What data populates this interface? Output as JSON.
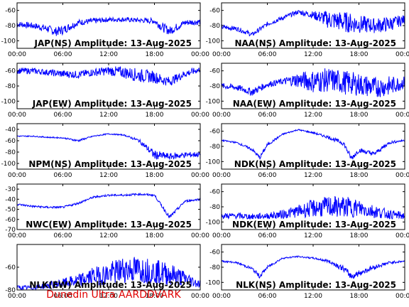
{
  "footer": "Dunedin Ultra AARDDVARK",
  "line_color": "#0000ff",
  "footer_color": "#e00000",
  "x_ticks": [
    "00:00",
    "06:00",
    "12:00",
    "18:00",
    "00:00"
  ],
  "chart_data": [
    {
      "type": "line",
      "title": "JAP(NS) Amplitude: 13-Aug-2025",
      "ylabel_ticks": [
        "-60",
        "-80",
        "-100"
      ],
      "ylim": [
        -110,
        -50
      ],
      "x": [
        0,
        2,
        4,
        5,
        6,
        8,
        10,
        12,
        14,
        16,
        18,
        19,
        20,
        22,
        24
      ],
      "series": [
        {
          "values": [
            -78,
            -80,
            -84,
            -88,
            -86,
            -76,
            -74,
            -72,
            -72,
            -73,
            -74,
            -82,
            -87,
            -76,
            -75
          ],
          "noise": [
            4,
            4,
            5,
            6,
            6,
            4,
            4,
            3,
            3,
            3,
            4,
            6,
            6,
            4,
            4
          ]
        }
      ]
    },
    {
      "type": "line",
      "title": "NAA(NS) Amplitude: 13-Aug-2025",
      "ylabel_ticks": [
        "-60",
        "-80",
        "-100"
      ],
      "ylim": [
        -110,
        -50
      ],
      "x": [
        0,
        2,
        4,
        6,
        8,
        10,
        12,
        14,
        16,
        18,
        20,
        22,
        24
      ],
      "series": [
        {
          "values": [
            -82,
            -84,
            -92,
            -78,
            -70,
            -62,
            -66,
            -72,
            -75,
            -78,
            -80,
            -78,
            -72
          ],
          "noise": [
            3,
            3,
            3,
            3,
            3,
            3,
            5,
            12,
            14,
            12,
            10,
            10,
            6
          ]
        }
      ]
    },
    {
      "type": "line",
      "title": "JAP(EW) Amplitude: 13-Aug-2025",
      "ylabel_ticks": [
        "-60",
        "-80",
        "-100"
      ],
      "ylim": [
        -110,
        -50
      ],
      "x": [
        0,
        2,
        4,
        6,
        8,
        10,
        12,
        14,
        16,
        18,
        19,
        20,
        22,
        24
      ],
      "series": [
        {
          "values": [
            -60,
            -60,
            -62,
            -64,
            -65,
            -62,
            -60,
            -62,
            -66,
            -68,
            -72,
            -74,
            -64,
            -58
          ],
          "noise": [
            4,
            4,
            4,
            5,
            5,
            5,
            6,
            8,
            9,
            8,
            7,
            6,
            5,
            4
          ]
        }
      ]
    },
    {
      "type": "line",
      "title": "NAA(EW) Amplitude: 13-Aug-2025",
      "ylabel_ticks": [
        "-60",
        "-80",
        "-100"
      ],
      "ylim": [
        -110,
        -50
      ],
      "x": [
        0,
        2,
        4,
        6,
        8,
        10,
        12,
        14,
        16,
        18,
        20,
        22,
        24
      ],
      "series": [
        {
          "values": [
            -80,
            -82,
            -88,
            -78,
            -74,
            -72,
            -74,
            -72,
            -75,
            -78,
            -82,
            -80,
            -75
          ],
          "noise": [
            4,
            4,
            5,
            4,
            4,
            10,
            15,
            16,
            16,
            15,
            14,
            13,
            8
          ]
        }
      ]
    },
    {
      "type": "line",
      "title": "NPM(NS) Amplitude: 13-Aug-2025",
      "ylabel_ticks": [
        "-40",
        "-60",
        "-80",
        "-100"
      ],
      "ylim": [
        -110,
        -30
      ],
      "x": [
        0,
        2,
        4,
        6,
        8,
        10,
        12,
        14,
        16,
        18,
        20,
        22,
        24
      ],
      "series": [
        {
          "values": [
            -52,
            -52,
            -54,
            -55,
            -60,
            -52,
            -48,
            -50,
            -60,
            -85,
            -88,
            -85,
            -84
          ],
          "noise": [
            1,
            1,
            1,
            1,
            2,
            1,
            1,
            1,
            3,
            8,
            6,
            5,
            5
          ]
        }
      ]
    },
    {
      "type": "line",
      "title": "NDK(NS) Amplitude: 13-Aug-2025",
      "ylabel_ticks": [
        "-60",
        "-80",
        "-100"
      ],
      "ylim": [
        -110,
        -50
      ],
      "x": [
        0,
        2,
        4,
        5,
        6,
        8,
        10,
        12,
        14,
        16,
        17,
        18,
        20,
        22,
        24
      ],
      "series": [
        {
          "values": [
            -72,
            -75,
            -84,
            -95,
            -78,
            -64,
            -58,
            -62,
            -68,
            -76,
            -96,
            -85,
            -90,
            -75,
            -72
          ],
          "noise": [
            1,
            1,
            2,
            3,
            2,
            1,
            1,
            1,
            2,
            3,
            4,
            3,
            3,
            2,
            1
          ]
        }
      ]
    },
    {
      "type": "line",
      "title": "NWC(EW) Amplitude: 13-Aug-2025",
      "ylabel_ticks": [
        "-30",
        "-40",
        "-50",
        "-60",
        "-70"
      ],
      "ylim": [
        -70,
        -25
      ],
      "x": [
        0,
        2,
        4,
        6,
        8,
        10,
        12,
        14,
        16,
        18,
        20,
        22,
        24
      ],
      "series": [
        {
          "values": [
            -45,
            -47,
            -48,
            -48,
            -44,
            -38,
            -36,
            -36,
            -35,
            -36,
            -58,
            -42,
            -40
          ],
          "noise": [
            1,
            1,
            1,
            1,
            1,
            1,
            1,
            1,
            1,
            1,
            2,
            1,
            1
          ]
        }
      ]
    },
    {
      "type": "line",
      "title": "NDK(EW) Amplitude: 13-Aug-2025",
      "ylabel_ticks": [
        "-60",
        "-80",
        "-100"
      ],
      "ylim": [
        -110,
        -50
      ],
      "x": [
        0,
        2,
        4,
        6,
        8,
        10,
        12,
        14,
        16,
        18,
        20,
        22,
        24
      ],
      "series": [
        {
          "values": [
            -92,
            -92,
            -93,
            -92,
            -90,
            -86,
            -82,
            -80,
            -80,
            -82,
            -86,
            -90,
            -92
          ],
          "noise": [
            4,
            4,
            4,
            4,
            6,
            8,
            12,
            14,
            14,
            12,
            9,
            6,
            5
          ]
        }
      ]
    },
    {
      "type": "line",
      "title": "NLK(EW) Amplitude: 13-Aug-2025",
      "ylabel_ticks": [
        "-60",
        "-80"
      ],
      "ylim": [
        -80,
        -40
      ],
      "x": [
        0,
        2,
        4,
        6,
        8,
        10,
        12,
        14,
        16,
        18,
        20,
        22,
        24
      ],
      "series": [
        {
          "values": [
            -78,
            -78,
            -76,
            -74,
            -72,
            -68,
            -66,
            -62,
            -62,
            -64,
            -66,
            -70,
            -75
          ],
          "noise": [
            2,
            2,
            3,
            4,
            6,
            8,
            10,
            12,
            12,
            11,
            10,
            7,
            3
          ]
        }
      ]
    },
    {
      "type": "line",
      "title": "NLK(NS) Amplitude: 13-Aug-2025",
      "ylabel_ticks": [
        "-60",
        "-80",
        "-100"
      ],
      "ylim": [
        -110,
        -50
      ],
      "x": [
        0,
        2,
        4,
        5,
        6,
        8,
        10,
        12,
        14,
        16,
        17,
        18,
        20,
        22,
        24
      ],
      "series": [
        {
          "values": [
            -72,
            -74,
            -82,
            -92,
            -80,
            -68,
            -66,
            -68,
            -72,
            -82,
            -92,
            -88,
            -80,
            -74,
            -72
          ],
          "noise": [
            1,
            1,
            2,
            3,
            2,
            1,
            1,
            1,
            2,
            4,
            5,
            4,
            3,
            2,
            1
          ]
        }
      ]
    }
  ]
}
